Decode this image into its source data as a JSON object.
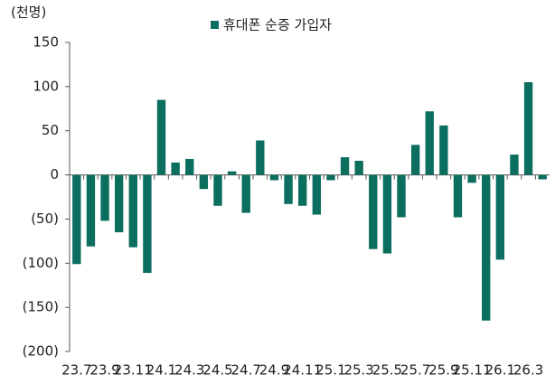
{
  "chart_data": {
    "type": "bar",
    "unit_label": "(천명)",
    "series": [
      {
        "name": "휴대폰 순증 가입자",
        "color": "#0b6e5e",
        "values": [
          -101,
          -81,
          -52,
          -65,
          -82,
          -111,
          85,
          14,
          18,
          -16,
          -35,
          4,
          -43,
          39,
          -6,
          -33,
          -35,
          -45,
          -6,
          20,
          16,
          -84,
          -89,
          -48,
          34,
          72,
          56,
          -48,
          -9,
          -165,
          -96,
          23,
          105,
          -5
        ]
      }
    ],
    "categories": [
      "23.7",
      null,
      "23.9",
      null,
      "23.11",
      null,
      "24.1",
      null,
      "24.3",
      null,
      "24.5",
      null,
      "24.7",
      null,
      "24.9",
      null,
      "24.11",
      null,
      "25.1",
      null,
      "25.3",
      null,
      "25.5",
      null,
      "25.7",
      null,
      "25.9",
      null,
      "25.11",
      null,
      "26.1",
      null,
      "26.3",
      null
    ],
    "ylim": [
      -200,
      150
    ],
    "yticks": [
      {
        "value": -200,
        "label": "(200)"
      },
      {
        "value": -150,
        "label": "(150)"
      },
      {
        "value": -100,
        "label": "(100)"
      },
      {
        "value": -50,
        "label": "(50)"
      },
      0,
      50,
      100,
      150
    ],
    "legend": "top"
  }
}
